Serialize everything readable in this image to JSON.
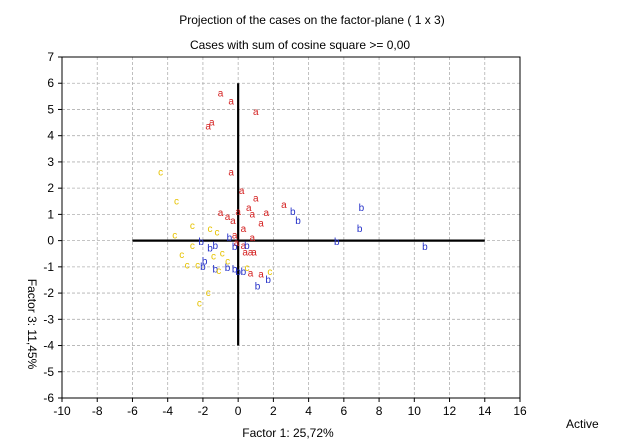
{
  "chart_data": {
    "type": "scatter",
    "title": "Projection of the cases on the factor-plane (  1 x   3)",
    "subtitle": "Cases with sum of cosine square >= 0,00",
    "xlabel": "Factor 1: 25,72%",
    "ylabel": "Factor 3: 11,45%",
    "legend_text": "Active",
    "xlim": [
      -10,
      16
    ],
    "ylim": [
      -6,
      7
    ],
    "x_ticks": [
      "-10",
      "-8",
      "-6",
      "-4",
      "-2",
      "0",
      "2",
      "4",
      "6",
      "8",
      "10",
      "12",
      "14",
      "16"
    ],
    "y_ticks": [
      "7",
      "6",
      "5",
      "4",
      "3",
      "2",
      "1",
      "0",
      "-1",
      "-2",
      "-3",
      "-4",
      "-5",
      "-6"
    ],
    "grid": true,
    "axis_cross": {
      "x_range": [
        -6,
        14
      ],
      "y_range": [
        -4,
        6
      ]
    },
    "series": [
      {
        "name": "a",
        "color": "#d42020",
        "points": [
          [
            -1.0,
            5.6
          ],
          [
            -0.4,
            5.3
          ],
          [
            1.0,
            4.9
          ],
          [
            -1.5,
            4.5
          ],
          [
            -1.7,
            4.35
          ],
          [
            -0.4,
            2.6
          ],
          [
            0.2,
            1.9
          ],
          [
            1.0,
            1.6
          ],
          [
            2.6,
            1.35
          ],
          [
            0.6,
            1.25
          ],
          [
            -1.0,
            1.05
          ],
          [
            -0.6,
            0.9
          ],
          [
            0.0,
            1.1
          ],
          [
            0.8,
            1.0
          ],
          [
            1.6,
            1.05
          ],
          [
            -0.3,
            0.75
          ],
          [
            1.3,
            0.65
          ],
          [
            0.3,
            0.45
          ],
          [
            -0.2,
            0.2
          ],
          [
            0.8,
            0.1
          ],
          [
            0.3,
            -0.2
          ],
          [
            0.4,
            -0.45
          ],
          [
            0.7,
            -0.45
          ],
          [
            0.9,
            -0.45
          ],
          [
            -0.1,
            -0.1
          ],
          [
            0.7,
            -1.25
          ],
          [
            1.3,
            -1.3
          ]
        ]
      },
      {
        "name": "b",
        "color": "#2430c8",
        "points": [
          [
            3.1,
            1.1
          ],
          [
            3.4,
            0.75
          ],
          [
            7.0,
            1.25
          ],
          [
            6.9,
            0.45
          ],
          [
            5.6,
            -0.05
          ],
          [
            10.6,
            -0.25
          ],
          [
            -2.1,
            -0.05
          ],
          [
            -0.5,
            0.1
          ],
          [
            -1.6,
            -0.3
          ],
          [
            0.5,
            -0.2
          ],
          [
            -0.2,
            -0.25
          ],
          [
            -1.3,
            -0.2
          ],
          [
            -1.9,
            -0.8
          ],
          [
            -2.0,
            -1.0
          ],
          [
            -0.2,
            -1.1
          ],
          [
            -0.6,
            -1.05
          ],
          [
            -1.3,
            -1.1
          ],
          [
            0.0,
            -1.2
          ],
          [
            0.3,
            -1.2
          ],
          [
            1.7,
            -1.5
          ],
          [
            1.1,
            -1.75
          ]
        ]
      },
      {
        "name": "c",
        "color": "#e6c200",
        "points": [
          [
            -4.4,
            2.6
          ],
          [
            -3.5,
            1.5
          ],
          [
            -2.6,
            0.55
          ],
          [
            -1.6,
            0.45
          ],
          [
            -1.2,
            0.3
          ],
          [
            -3.6,
            0.2
          ],
          [
            -2.6,
            -0.2
          ],
          [
            -3.2,
            -0.55
          ],
          [
            -2.9,
            -0.95
          ],
          [
            -2.3,
            -0.95
          ],
          [
            -1.4,
            -0.6
          ],
          [
            -0.9,
            -0.5
          ],
          [
            -0.6,
            -0.8
          ],
          [
            -1.1,
            -1.15
          ],
          [
            0.5,
            -1.05
          ],
          [
            1.8,
            -1.2
          ],
          [
            -1.7,
            -2.0
          ],
          [
            -2.2,
            -2.4
          ]
        ]
      }
    ]
  }
}
